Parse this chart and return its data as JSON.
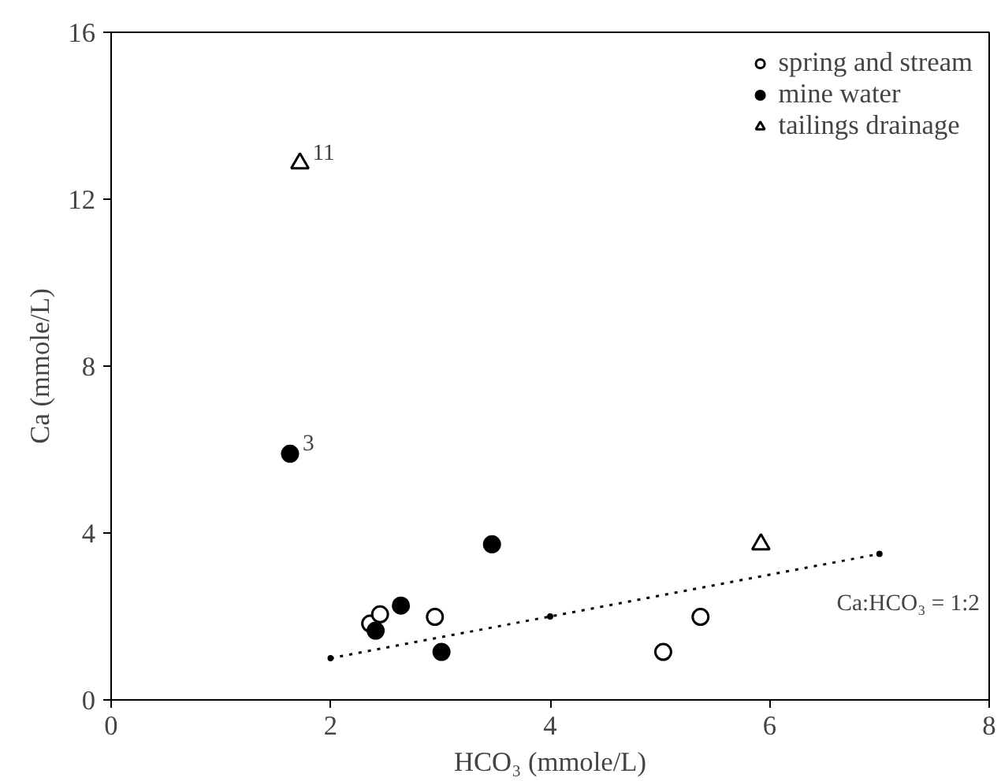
{
  "chart_data": {
    "type": "scatter",
    "xlabel": "HCO₃ (mmole/L)",
    "ylabel": "Ca (mmole/L)",
    "xlim": [
      0,
      8
    ],
    "ylim": [
      0,
      16
    ],
    "xticks": [
      0,
      2,
      4,
      6,
      8
    ],
    "yticks": [
      0,
      4,
      8,
      12,
      16
    ],
    "grid": false,
    "legend": "top right",
    "series": [
      {
        "name": "spring and stream",
        "marker": "circle",
        "color": "#ffffff",
        "x": [
          2.36,
          2.45,
          2.95,
          5.03,
          5.37
        ],
        "values": [
          1.83,
          2.05,
          1.99,
          1.15,
          1.99
        ]
      },
      {
        "name": "mine water",
        "marker": "circle",
        "color": "#000000",
        "x": [
          1.63,
          2.41,
          2.64,
          3.01,
          3.47
        ],
        "values": [
          5.9,
          1.66,
          2.26,
          1.15,
          3.73
        ]
      },
      {
        "name": "tailings drainage",
        "marker": "triangle",
        "color": "#ffffff",
        "x": [
          1.72,
          5.92
        ],
        "values": [
          12.86,
          3.73
        ]
      },
      {
        "type": "line",
        "line_style": "dotted",
        "marker": "circle",
        "color": "#000000",
        "x": [
          2,
          4,
          7
        ],
        "values": [
          1,
          2,
          3.5
        ]
      }
    ],
    "annotations": [
      {
        "text": "3",
        "x": 1.63,
        "y": 5.9
      },
      {
        "text": "11",
        "x": 1.72,
        "y": 12.86
      },
      "Ca:HCO₃ = 1:2"
    ]
  }
}
